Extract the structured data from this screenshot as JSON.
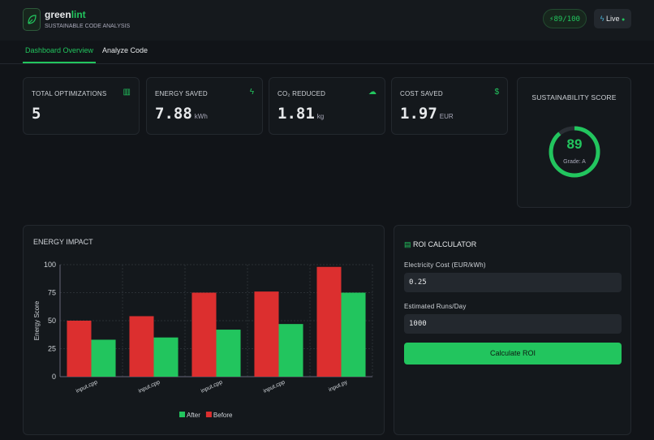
{
  "header": {
    "brand": "green",
    "brand_accent": "lint",
    "subtitle": "SUSTAINABLE CODE ANALYSIS",
    "badge": {
      "score": 89,
      "max": 100
    },
    "live": "Live"
  },
  "tabs": [
    "Dashboard Overview",
    "Analyze Code"
  ],
  "stats": [
    {
      "label": "TOTAL OPTIMIZATIONS",
      "value": 5
    },
    {
      "label": "ENERGY SAVED",
      "value": 7.88,
      "unit": "kWh"
    },
    {
      "label": "CO₂ REDUCED",
      "value": 1.81,
      "unit": "kg"
    },
    {
      "label": "COST SAVED",
      "value": 1.97,
      "unit": "EUR"
    }
  ],
  "sustainability": {
    "title": "SUSTAINABILITY SCORE",
    "score": 89,
    "grade": "Grade: A"
  },
  "chart_data": {
    "type": "bar",
    "title": "ENERGY IMPACT",
    "y_label": "Energy Score",
    "categories": [
      "input.cpp",
      "input.cpp",
      "input.cpp",
      "input.cpp",
      "input.py"
    ],
    "series": [
      {
        "name": "Before",
        "color": "#dc2f2f",
        "values": [
          50,
          54,
          75,
          76,
          98
        ]
      },
      {
        "name": "After",
        "color": "#22c55e",
        "values": [
          33,
          35,
          42,
          47,
          75
        ]
      }
    ],
    "ylim": [
      0,
      100
    ],
    "yticks": [
      0,
      25,
      50,
      75,
      100
    ],
    "grid": true
  },
  "roi": {
    "title": "ROI CALCULATOR",
    "cost_label": "Electricity Cost (EUR/kWh)",
    "cost_value": "0.25",
    "runs_label": "Estimated Runs/Day",
    "runs_value": "1000",
    "button": "Calculate ROI"
  }
}
